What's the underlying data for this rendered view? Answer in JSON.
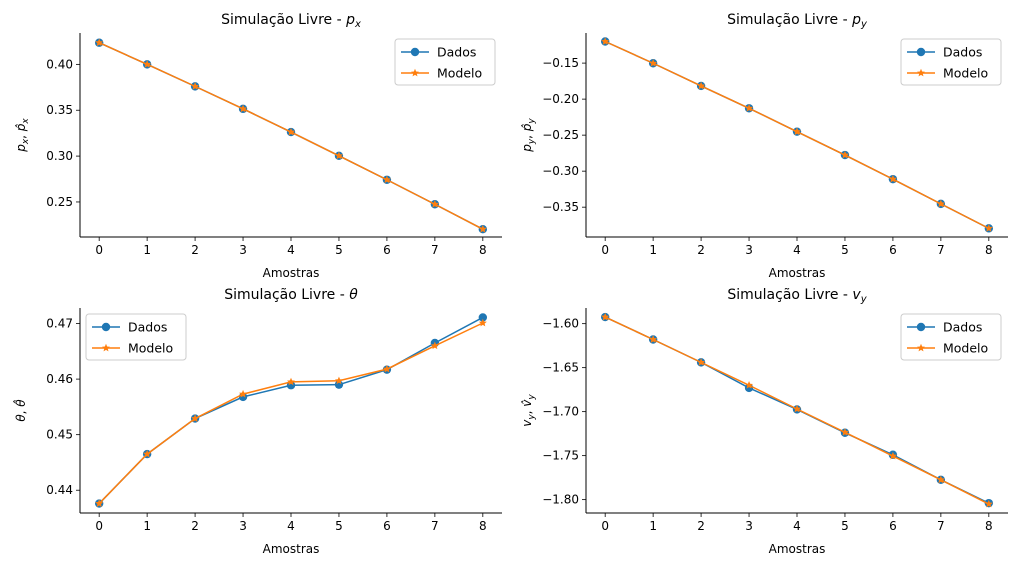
{
  "chart_data": [
    {
      "type": "line",
      "title_main": "Simulação Livre - ",
      "title_sym": "p",
      "title_sub": "x",
      "xlabel": "Amostras",
      "ylabel_tex": "p_x, p̂_x",
      "ylabel_sym1": "p",
      "ylabel_sub1": "x",
      "ylabel_sep": ", ",
      "ylabel_sym2": "p̂",
      "ylabel_sub2": "x",
      "x": [
        0,
        1,
        2,
        3,
        4,
        5,
        6,
        7,
        8
      ],
      "xticks": [
        "0",
        "1",
        "2",
        "3",
        "4",
        "5",
        "6",
        "7",
        "8"
      ],
      "xlim": [
        -0.4,
        8.4
      ],
      "ylim": [
        0.2118,
        0.4342
      ],
      "yticks": [
        0.25,
        0.3,
        0.35,
        0.4
      ],
      "ytick_labels": [
        "0.25",
        "0.30",
        "0.35",
        "0.40"
      ],
      "legend_position": "top-right",
      "series": [
        {
          "name": "Dados",
          "marker": "circle",
          "color": "#1f77b4",
          "values": [
            0.4236,
            0.4,
            0.376,
            0.3515,
            0.3262,
            0.3003,
            0.2742,
            0.2475,
            0.2203
          ]
        },
        {
          "name": "Modelo",
          "marker": "star",
          "color": "#ff7f0e",
          "values": [
            0.4236,
            0.4,
            0.376,
            0.3515,
            0.3262,
            0.3003,
            0.2742,
            0.2475,
            0.2203
          ]
        }
      ]
    },
    {
      "type": "line",
      "title_main": "Simulação Livre - ",
      "title_sym": "p",
      "title_sub": "y",
      "xlabel": "Amostras",
      "ylabel_sym1": "p",
      "ylabel_sub1": "y",
      "ylabel_sep": ", ",
      "ylabel_sym2": "p̂",
      "ylabel_sub2": "y",
      "x": [
        0,
        1,
        2,
        3,
        4,
        5,
        6,
        7,
        8
      ],
      "xticks": [
        "0",
        "1",
        "2",
        "3",
        "4",
        "5",
        "6",
        "7",
        "8"
      ],
      "xlim": [
        -0.4,
        8.4
      ],
      "ylim": [
        -0.3914,
        -0.1082
      ],
      "yticks": [
        -0.35,
        -0.3,
        -0.25,
        -0.2,
        -0.15
      ],
      "ytick_labels": [
        "−0.35",
        "−0.30",
        "−0.25",
        "−0.20",
        "−0.15"
      ],
      "legend_position": "top-right",
      "series": [
        {
          "name": "Dados",
          "marker": "circle",
          "color": "#1f77b4",
          "values": [
            -0.12,
            -0.1502,
            -0.1817,
            -0.2127,
            -0.2452,
            -0.2776,
            -0.3111,
            -0.3454,
            -0.3794
          ]
        },
        {
          "name": "Modelo",
          "marker": "star",
          "color": "#ff7f0e",
          "values": [
            -0.12,
            -0.1502,
            -0.1817,
            -0.2127,
            -0.2452,
            -0.2776,
            -0.3111,
            -0.3454,
            -0.3794
          ]
        }
      ]
    },
    {
      "type": "line",
      "title_main": "Simulação Livre - ",
      "title_sym": "θ",
      "title_sub": "",
      "xlabel": "Amostras",
      "ylabel_sym1": "θ",
      "ylabel_sub1": "",
      "ylabel_sep": ", ",
      "ylabel_sym2": "θ̂",
      "ylabel_sub2": "",
      "x": [
        0,
        1,
        2,
        3,
        4,
        5,
        6,
        7,
        8
      ],
      "xticks": [
        "0",
        "1",
        "2",
        "3",
        "4",
        "5",
        "6",
        "7",
        "8"
      ],
      "xlim": [
        -0.4,
        8.4
      ],
      "ylim": [
        0.4359,
        0.4728
      ],
      "yticks": [
        0.44,
        0.45,
        0.46,
        0.47
      ],
      "ytick_labels": [
        "0.44",
        "0.45",
        "0.46",
        "0.47"
      ],
      "legend_position": "top-left",
      "series": [
        {
          "name": "Dados",
          "marker": "circle",
          "color": "#1f77b4",
          "values": [
            0.4376,
            0.4465,
            0.4529,
            0.4568,
            0.4589,
            0.459,
            0.4617,
            0.4665,
            0.4711
          ]
        },
        {
          "name": "Modelo",
          "marker": "star",
          "color": "#ff7f0e",
          "values": [
            0.4376,
            0.4465,
            0.4529,
            0.4573,
            0.4595,
            0.4597,
            0.4618,
            0.466,
            0.4701
          ]
        }
      ]
    },
    {
      "type": "line",
      "title_main": "Simulação Livre - ",
      "title_sym": "v",
      "title_sub": "y",
      "xlabel": "Amostras",
      "ylabel_sym1": "v",
      "ylabel_sub1": "y",
      "ylabel_sep": ", ",
      "ylabel_sym2": "v̂",
      "ylabel_sub2": "y",
      "x": [
        0,
        1,
        2,
        3,
        4,
        5,
        6,
        7,
        8
      ],
      "xticks": [
        "0",
        "1",
        "2",
        "3",
        "4",
        "5",
        "6",
        "7",
        "8"
      ],
      "xlim": [
        -0.4,
        8.4
      ],
      "ylim": [
        -1.8152,
        -1.5822
      ],
      "yticks": [
        -1.8,
        -1.75,
        -1.7,
        -1.65,
        -1.6
      ],
      "ytick_labels": [
        "−1.80",
        "−1.75",
        "−1.70",
        "−1.65",
        "−1.60"
      ],
      "legend_position": "top-right",
      "series": [
        {
          "name": "Dados",
          "marker": "circle",
          "color": "#1f77b4",
          "values": [
            -1.5925,
            -1.618,
            -1.644,
            -1.673,
            -1.6975,
            -1.724,
            -1.749,
            -1.7775,
            -1.804
          ]
        },
        {
          "name": "Modelo",
          "marker": "star",
          "color": "#ff7f0e",
          "values": [
            -1.5925,
            -1.618,
            -1.644,
            -1.67,
            -1.697,
            -1.7235,
            -1.7505,
            -1.7775,
            -1.805
          ]
        }
      ]
    }
  ]
}
